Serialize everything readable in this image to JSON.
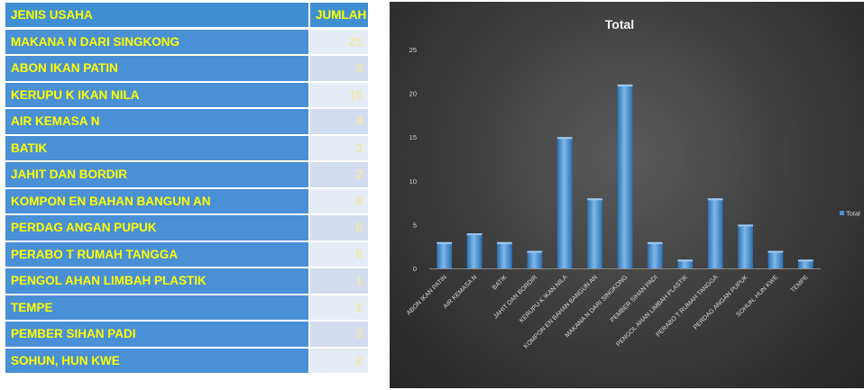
{
  "table": {
    "headers": [
      "JENIS USAHA",
      "JUMLAH"
    ],
    "rows": [
      {
        "name": "MAKANA N DARI SINGKONG",
        "value": "21"
      },
      {
        "name": "ABON IKAN PATIN",
        "value": "3"
      },
      {
        "name": "KERUPU K IKAN NILA",
        "value": "15"
      },
      {
        "name": "AIR KEMASA N",
        "value": "4"
      },
      {
        "name": "BATIK",
        "value": "3"
      },
      {
        "name": "JAHIT DAN BORDIR",
        "value": "2"
      },
      {
        "name": "KOMPON EN BAHAN BANGUN AN",
        "value": "8"
      },
      {
        "name": "PERDAG ANGAN PUPUK",
        "value": "5"
      },
      {
        "name": "PERABO T RUMAH TANGGA",
        "value": "8"
      },
      {
        "name": "PENGOL AHAN LIMBAH PLASTIK",
        "value": "1"
      },
      {
        "name": "TEMPE",
        "value": "1"
      },
      {
        "name": "PEMBER SIHAN PADI",
        "value": "3"
      },
      {
        "name": "SOHUN, HUN KWE",
        "value": "2"
      }
    ]
  },
  "chart_data": {
    "type": "bar",
    "title": "Total",
    "xlabel": "",
    "ylabel": "",
    "categories": [
      "ABON IKAN PATIN",
      "AIR KEMASA N",
      "BATIK",
      "JAHIT DAN BORDIR",
      "KERUPU K IKAN NILA",
      "KOMPON EN BAHAN BANGUN AN",
      "MAKANA N DARI SINGKONG",
      "PEMBER SIHAN PADI",
      "PENGOL AHAN LIMBAH PLASTIK",
      "PERABO T RUMAH TANGGA",
      "PERDAG ANGAN PUPUK",
      "SOHUN, HUN KWE",
      "TEMPE"
    ],
    "series": [
      {
        "name": "Total",
        "values": [
          3,
          4,
          3,
          2,
          15,
          8,
          21,
          3,
          1,
          8,
          5,
          2,
          1
        ]
      }
    ],
    "ylim": [
      0,
      25
    ],
    "yticks": [
      0,
      5,
      10,
      15,
      20,
      25
    ],
    "grid": false,
    "legend": "right",
    "colors": {
      "bar": "#4a90d6",
      "bar_light": "#7eb8ea",
      "bar_dark": "#2c6fb0",
      "axis_text": "#d8d8d8",
      "title": "#f2f2f2"
    }
  }
}
